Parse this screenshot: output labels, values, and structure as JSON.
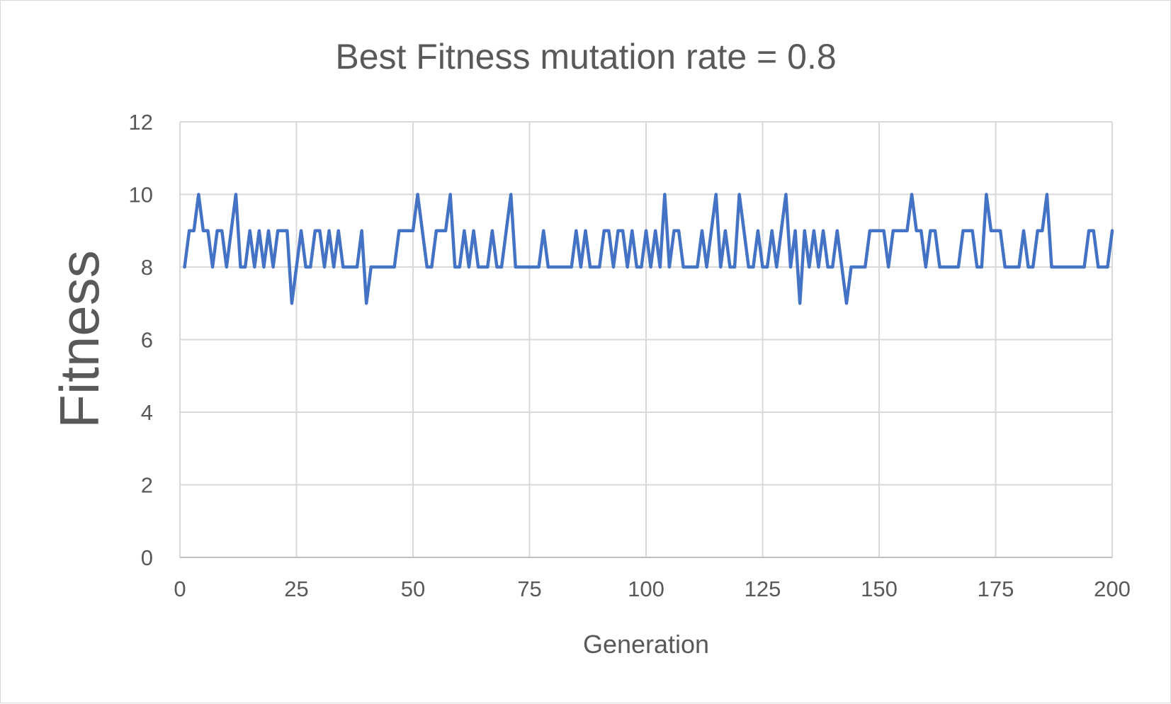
{
  "chart_data": {
    "type": "line",
    "title": "Best Fitness mutation rate = 0.8",
    "xlabel": "Generation",
    "ylabel": "Fitness",
    "xlim": [
      0,
      200
    ],
    "ylim": [
      0,
      12
    ],
    "xticks": [
      0,
      25,
      50,
      75,
      100,
      125,
      150,
      175,
      200
    ],
    "yticks": [
      0,
      2,
      4,
      6,
      8,
      10,
      12
    ],
    "grid": true,
    "legend": "none",
    "colors": {
      "series": "#4472c4",
      "grid": "#d9d9d9",
      "text": "#595959"
    },
    "series": [
      {
        "x": [
          1,
          2,
          3,
          4,
          5,
          6,
          7,
          8,
          9,
          10,
          11,
          12,
          13,
          14,
          15,
          16,
          17,
          18,
          19,
          20,
          21,
          22,
          23,
          24,
          25,
          26,
          27,
          28,
          29,
          30,
          31,
          32,
          33,
          34,
          35,
          36,
          37,
          38,
          39,
          40,
          41,
          42,
          43,
          44,
          45,
          46,
          47,
          48,
          49,
          50,
          51,
          52,
          53,
          54,
          55,
          56,
          57,
          58,
          59,
          60,
          61,
          62,
          63,
          64,
          65,
          66,
          67,
          68,
          69,
          70,
          71,
          72,
          73,
          74,
          75,
          76,
          77,
          78,
          79,
          80,
          81,
          82,
          83,
          84,
          85,
          86,
          87,
          88,
          89,
          90,
          91,
          92,
          93,
          94,
          95,
          96,
          97,
          98,
          99,
          100,
          101,
          102,
          103,
          104,
          105,
          106,
          107,
          108,
          109,
          110,
          111,
          112,
          113,
          114,
          115,
          116,
          117,
          118,
          119,
          120,
          121,
          122,
          123,
          124,
          125,
          126,
          127,
          128,
          129,
          130,
          131,
          132,
          133,
          134,
          135,
          136,
          137,
          138,
          139,
          140,
          141,
          142,
          143,
          144,
          145,
          146,
          147,
          148,
          149,
          150,
          151,
          152,
          153,
          154,
          155,
          156,
          157,
          158,
          159,
          160,
          161,
          162,
          163,
          164,
          165,
          166,
          167,
          168,
          169,
          170,
          171,
          172,
          173,
          174,
          175,
          176,
          177,
          178,
          179,
          180,
          181,
          182,
          183,
          184,
          185,
          186,
          187,
          188,
          189,
          190,
          191,
          192,
          193,
          194,
          195,
          196,
          197,
          198,
          199,
          200
        ],
        "values": [
          8,
          9,
          9,
          10,
          9,
          9,
          8,
          9,
          9,
          8,
          9,
          10,
          8,
          8,
          9,
          8,
          9,
          8,
          9,
          8,
          9,
          9,
          9,
          7,
          8,
          9,
          8,
          8,
          9,
          9,
          8,
          9,
          8,
          9,
          8,
          8,
          8,
          8,
          9,
          7,
          8,
          8,
          8,
          8,
          8,
          8,
          9,
          9,
          9,
          9,
          10,
          9,
          8,
          8,
          9,
          9,
          9,
          10,
          8,
          8,
          9,
          8,
          9,
          8,
          8,
          8,
          9,
          8,
          8,
          9,
          10,
          8,
          8,
          8,
          8,
          8,
          8,
          9,
          8,
          8,
          8,
          8,
          8,
          8,
          9,
          8,
          9,
          8,
          8,
          8,
          9,
          9,
          8,
          9,
          9,
          8,
          9,
          8,
          8,
          9,
          8,
          9,
          8,
          10,
          8,
          9,
          9,
          8,
          8,
          8,
          8,
          9,
          8,
          9,
          10,
          8,
          9,
          8,
          8,
          10,
          9,
          8,
          8,
          9,
          8,
          8,
          9,
          8,
          9,
          10,
          8,
          9,
          7,
          9,
          8,
          9,
          8,
          9,
          8,
          8,
          9,
          8,
          7,
          8,
          8,
          8,
          8,
          9,
          9,
          9,
          9,
          8,
          9,
          9,
          9,
          9,
          10,
          9,
          9,
          8,
          9,
          9,
          8,
          8,
          8,
          8,
          8,
          9,
          9,
          9,
          8,
          8,
          10,
          9,
          9,
          9,
          8,
          8,
          8,
          8,
          9,
          8,
          8,
          9,
          9,
          10,
          8,
          8,
          8,
          8,
          8,
          8,
          8,
          8,
          9,
          9,
          8,
          8,
          8,
          9
        ]
      }
    ]
  }
}
